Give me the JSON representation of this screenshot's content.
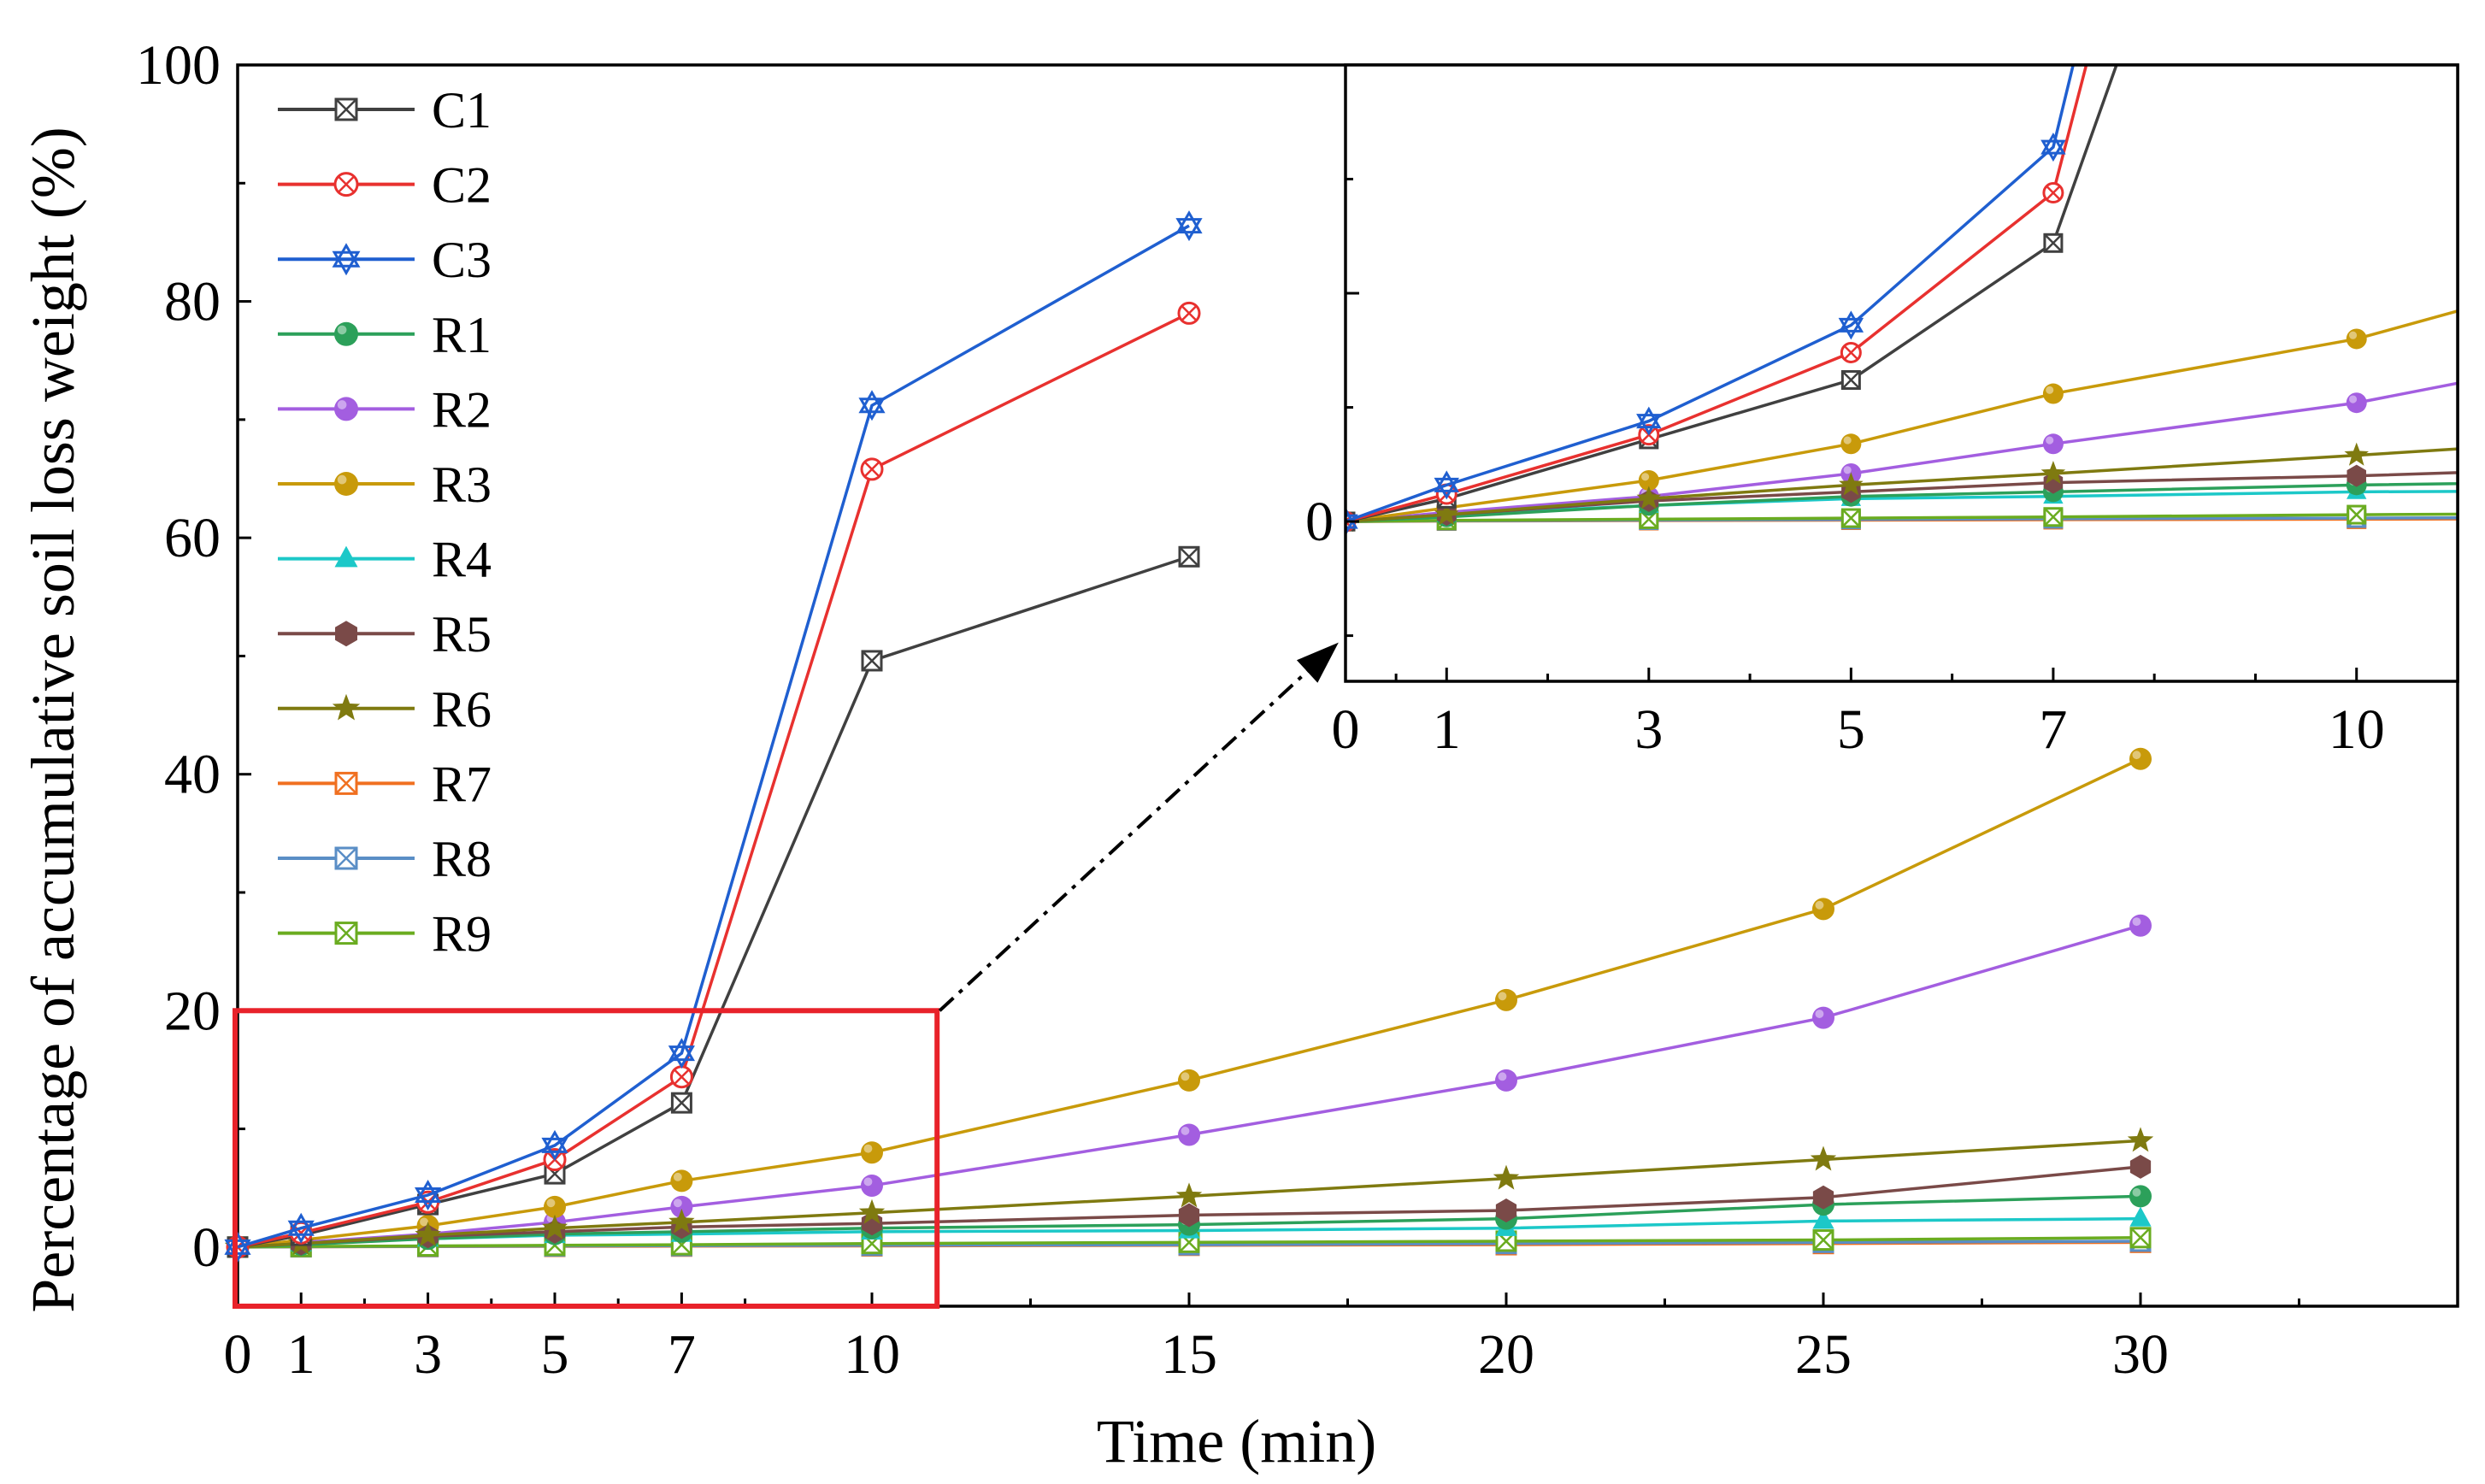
{
  "chart_data": {
    "type": "line",
    "ylabel": "Percentage of accumulative soil loss weight (%)",
    "xlabel": "Time (min)",
    "x": [
      0,
      1,
      3,
      5,
      7,
      10,
      15,
      20,
      25,
      30
    ],
    "xticks": [
      "0",
      "1",
      "3",
      "5",
      "7",
      "10",
      "15",
      "20",
      "25",
      "30"
    ],
    "yticks": [
      "0",
      "20",
      "40",
      "60",
      "80",
      "100"
    ],
    "ylim": [
      -5,
      100
    ],
    "xlim": [
      0,
      35
    ],
    "series": [
      {
        "name": "C1",
        "color": "#404040",
        "marker": "sqx",
        "values": [
          0,
          1.0,
          3.6,
          6.2,
          12.2,
          49.6,
          58.4,
          null,
          null,
          null
        ]
      },
      {
        "name": "C2",
        "color": "#e8312f",
        "marker": "circx",
        "values": [
          0,
          1.2,
          3.8,
          7.4,
          14.4,
          65.8,
          79.0,
          null,
          null,
          null
        ]
      },
      {
        "name": "C3",
        "color": "#1f5fd0",
        "marker": "star6",
        "values": [
          0,
          1.6,
          4.4,
          8.6,
          16.4,
          71.2,
          86.4,
          null,
          null,
          null
        ]
      },
      {
        "name": "R1",
        "color": "#2ca05a",
        "marker": "ball",
        "values": [
          0,
          0.2,
          0.7,
          1.1,
          1.3,
          1.6,
          1.9,
          2.4,
          3.6,
          4.3
        ]
      },
      {
        "name": "R2",
        "color": "#a35ee0",
        "marker": "ball",
        "values": [
          0,
          0.4,
          1.1,
          2.1,
          3.4,
          5.2,
          9.5,
          14.1,
          19.4,
          27.2
        ]
      },
      {
        "name": "R3",
        "color": "#c89a0a",
        "marker": "ball",
        "values": [
          0,
          0.6,
          1.8,
          3.4,
          5.6,
          8.0,
          14.1,
          20.9,
          28.6,
          41.3
        ]
      },
      {
        "name": "R4",
        "color": "#1cc8c8",
        "marker": "tri",
        "values": [
          0,
          0.3,
          0.7,
          1.0,
          1.1,
          1.3,
          1.4,
          1.6,
          2.2,
          2.4
        ]
      },
      {
        "name": "R5",
        "color": "#7a4a48",
        "marker": "hex",
        "values": [
          0,
          0.3,
          0.9,
          1.3,
          1.7,
          2.0,
          2.7,
          3.1,
          4.2,
          6.8
        ]
      },
      {
        "name": "R6",
        "color": "#7f7a10",
        "marker": "pstar",
        "values": [
          0,
          0.3,
          1.0,
          1.6,
          2.1,
          2.9,
          4.3,
          5.8,
          7.4,
          9.0
        ]
      },
      {
        "name": "R7",
        "color": "#f07020",
        "marker": "sqx",
        "values": [
          0,
          0.02,
          0.04,
          0.06,
          0.08,
          0.1,
          0.15,
          0.2,
          0.3,
          0.4
        ]
      },
      {
        "name": "R8",
        "color": "#5a8ec6",
        "marker": "sqx",
        "values": [
          0,
          0.03,
          0.06,
          0.09,
          0.12,
          0.15,
          0.2,
          0.3,
          0.4,
          0.5
        ]
      },
      {
        "name": "R9",
        "color": "#6aac20",
        "marker": "sqx",
        "values": [
          0,
          0.05,
          0.1,
          0.15,
          0.2,
          0.3,
          0.4,
          0.5,
          0.6,
          0.8
        ]
      }
    ],
    "inset": {
      "xticks": [
        "0",
        "1",
        "3",
        "5",
        "7",
        "10"
      ],
      "yticks": [
        "0"
      ],
      "xlim": [
        0,
        11
      ],
      "ylim": [
        -7,
        20
      ]
    }
  }
}
